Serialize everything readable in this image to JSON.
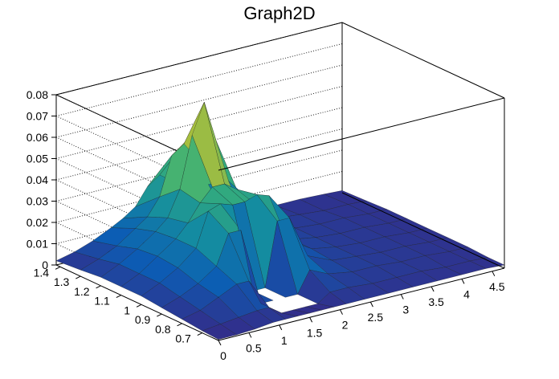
{
  "chart_data": {
    "type": "surface3d",
    "title": "Graph2D",
    "xlabel": "",
    "ylabel": "",
    "zlabel": "",
    "x_ticks": [
      "0",
      "0.5",
      "1",
      "1.5",
      "2",
      "2.5",
      "3",
      "3.5",
      "4",
      "4.5"
    ],
    "x_tick_values": [
      0,
      0.5,
      1,
      1.5,
      2,
      2.5,
      3,
      3.5,
      4,
      4.5
    ],
    "y_ticks": [
      "0.7",
      "0.8",
      "0.9",
      "1",
      "1.1",
      "1.2",
      "1.3",
      "1.4"
    ],
    "y_tick_values": [
      0.7,
      0.8,
      0.9,
      1.0,
      1.1,
      1.2,
      1.3,
      1.4
    ],
    "z_ticks": [
      "0",
      "0.01",
      "0.02",
      "0.03",
      "0.04",
      "0.05",
      "0.06",
      "0.07",
      "0.08"
    ],
    "z_tick_values": [
      0,
      0.01,
      0.02,
      0.03,
      0.04,
      0.05,
      0.06,
      0.07,
      0.08
    ],
    "xlim": [
      0,
      4.7
    ],
    "ylim": [
      0.62,
      1.42
    ],
    "zlim": [
      0,
      0.08
    ],
    "grid": true,
    "colormap": "viridis",
    "surface_x": [
      0,
      0.3,
      0.6,
      0.9,
      1.1,
      1.3,
      1.5,
      1.7,
      1.9,
      2.1,
      2.4,
      2.8,
      3.2,
      3.6,
      4.0,
      4.4,
      4.7
    ],
    "surface_y": [
      0.62,
      0.7,
      0.8,
      0.9,
      1.0,
      1.1,
      1.2,
      1.3,
      1.42
    ],
    "surface_z": [
      [
        0.0005,
        0.0005,
        0.001,
        0.002,
        0.002,
        0.002,
        0.002,
        0.002,
        0.002,
        0.002,
        0.002,
        0.002,
        0.002,
        0.002,
        0.002,
        0.002,
        0.0015
      ],
      [
        0.001,
        0.002,
        0.003,
        0.004,
        0.004,
        0.0,
        0.0,
        0.0,
        0.0,
        0.004,
        0.004,
        0.003,
        0.003,
        0.003,
        0.002,
        0.002,
        0.0015
      ],
      [
        0.002,
        0.004,
        0.008,
        0.012,
        0.012,
        0.0,
        0.0,
        0.0,
        0.0,
        0.01,
        0.006,
        0.004,
        0.004,
        0.003,
        0.003,
        0.002,
        0.002
      ],
      [
        0.003,
        0.006,
        0.01,
        0.016,
        0.03,
        0.03,
        0.0,
        0.0,
        0.03,
        0.03,
        0.01,
        0.005,
        0.004,
        0.003,
        0.003,
        0.002,
        0.002
      ],
      [
        0.004,
        0.008,
        0.013,
        0.02,
        0.036,
        0.038,
        0.036,
        0.036,
        0.038,
        0.036,
        0.013,
        0.006,
        0.004,
        0.003,
        0.003,
        0.002,
        0.002
      ],
      [
        0.004,
        0.008,
        0.014,
        0.02,
        0.026,
        0.034,
        0.04,
        0.04,
        0.036,
        0.03,
        0.012,
        0.006,
        0.004,
        0.003,
        0.003,
        0.002,
        0.002
      ],
      [
        0.004,
        0.008,
        0.013,
        0.019,
        0.024,
        0.036,
        0.06,
        0.074,
        0.054,
        0.034,
        0.012,
        0.006,
        0.004,
        0.003,
        0.003,
        0.002,
        0.002
      ],
      [
        0.003,
        0.006,
        0.01,
        0.016,
        0.02,
        0.028,
        0.046,
        0.05,
        0.042,
        0.028,
        0.01,
        0.005,
        0.004,
        0.003,
        0.002,
        0.002,
        0.0015
      ],
      [
        0.002,
        0.004,
        0.007,
        0.011,
        0.014,
        0.018,
        0.026,
        0.03,
        0.026,
        0.018,
        0.008,
        0.004,
        0.003,
        0.002,
        0.002,
        0.0015,
        0.001
      ]
    ]
  }
}
